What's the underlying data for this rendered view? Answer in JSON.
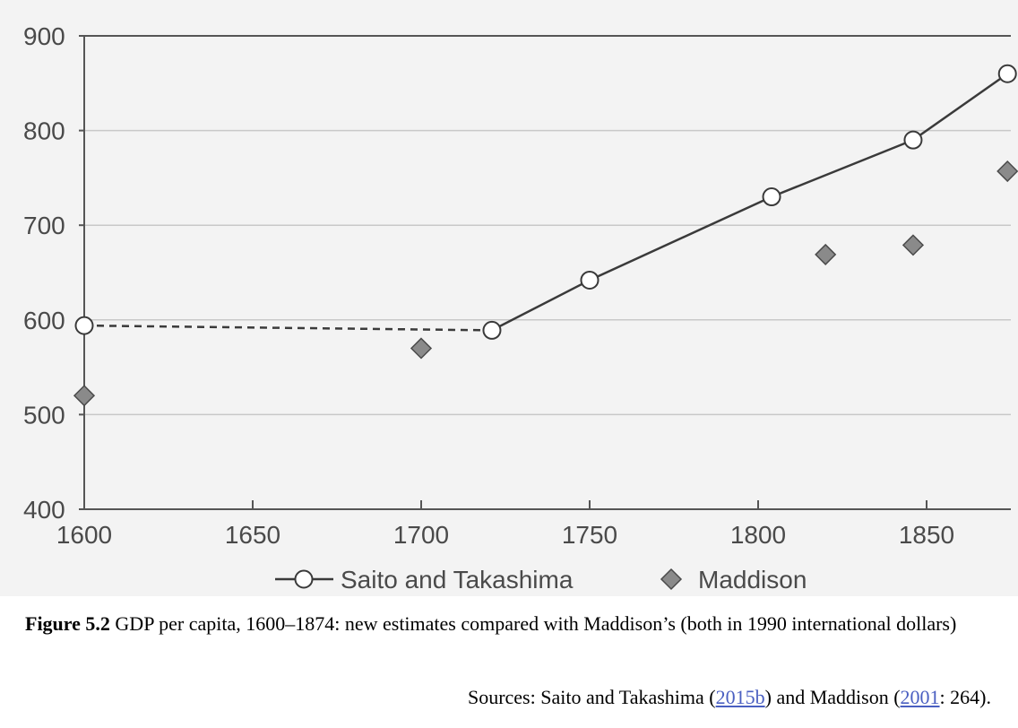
{
  "chart_data": {
    "type": "line",
    "title": "",
    "xlabel": "",
    "ylabel": "",
    "xlim": [
      1600,
      1875
    ],
    "ylim": [
      400,
      900
    ],
    "x_ticks": [
      1600,
      1650,
      1700,
      1750,
      1800,
      1850
    ],
    "y_ticks": [
      400,
      500,
      600,
      700,
      800,
      900
    ],
    "grid": "horizontal",
    "legend_position": "bottom",
    "series": [
      {
        "name": "Saito and Takashima",
        "marker": "open-circle",
        "line": "solid (dashed between 1600 and 1721)",
        "points": [
          {
            "x": 1600,
            "y": 594
          },
          {
            "x": 1721,
            "y": 589
          },
          {
            "x": 1750,
            "y": 642
          },
          {
            "x": 1804,
            "y": 730
          },
          {
            "x": 1846,
            "y": 790
          },
          {
            "x": 1874,
            "y": 860
          }
        ]
      },
      {
        "name": "Maddison",
        "marker": "diamond",
        "line": "none",
        "points": [
          {
            "x": 1600,
            "y": 520
          },
          {
            "x": 1700,
            "y": 570
          },
          {
            "x": 1820,
            "y": 669
          },
          {
            "x": 1846,
            "y": 679
          },
          {
            "x": 1874,
            "y": 757
          }
        ]
      }
    ]
  },
  "colors": {
    "panel_background": "#f3f3f3",
    "axis": "#555555",
    "grid": "#c8c8c8",
    "line": "#3a3a3a",
    "open_marker_fill": "#ffffff",
    "diamond_fill": "#8a8a8a",
    "diamond_stroke": "#4a4a4a",
    "link": "#4a5fc1"
  },
  "caption": {
    "figure_number": "Figure 5.2",
    "text": " GDP per capita, 1600–1874: new estimates compared with Maddison’s (both in 1990 international dollars)"
  },
  "sources": {
    "prefix": "Sources: Saito and Takashima (",
    "ref1": "2015b",
    "middle": ") and Maddison (",
    "ref2": "2001",
    "suffix": ": 264)."
  }
}
